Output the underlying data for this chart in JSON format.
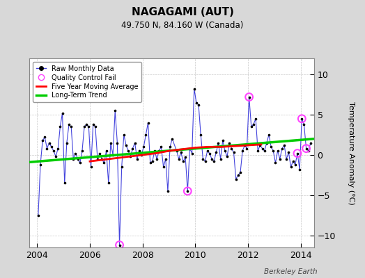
{
  "title": "NAGAGAMI (AUT)",
  "subtitle": "49.750 N, 84.160 W (Canada)",
  "ylabel": "Temperature Anomaly (°C)",
  "credit": "Berkeley Earth",
  "xlim": [
    2003.7,
    2014.5
  ],
  "ylim": [
    -11.5,
    12
  ],
  "yticks": [
    -10,
    -5,
    0,
    5,
    10
  ],
  "bg_color": "#d8d8d8",
  "plot_bg": "#ffffff",
  "line_color": "#4444dd",
  "dot_color": "#000000",
  "ma_color": "#ff0000",
  "trend_color": "#00cc00",
  "qc_color": "#ff44ff",
  "raw_monthly": [
    2004.042,
    -7.5,
    2004.125,
    -1.2,
    2004.208,
    1.8,
    2004.292,
    2.2,
    2004.375,
    0.8,
    2004.458,
    1.5,
    2004.542,
    1.0,
    2004.625,
    0.5,
    2004.708,
    -0.2,
    2004.792,
    0.8,
    2004.875,
    3.5,
    2004.958,
    5.2,
    2005.042,
    -3.5,
    2005.125,
    1.5,
    2005.208,
    3.8,
    2005.292,
    3.5,
    2005.375,
    -0.5,
    2005.458,
    0.2,
    2005.542,
    -0.5,
    2005.625,
    -1.0,
    2005.708,
    0.5,
    2005.792,
    3.5,
    2005.875,
    3.8,
    2005.958,
    3.5,
    2006.042,
    -1.5,
    2006.125,
    3.8,
    2006.208,
    3.5,
    2006.292,
    -0.5,
    2006.375,
    0.2,
    2006.458,
    -0.5,
    2006.542,
    -1.0,
    2006.625,
    0.5,
    2006.708,
    -3.5,
    2006.792,
    1.5,
    2006.875,
    0.0,
    2006.958,
    5.5,
    2007.042,
    1.5,
    2007.125,
    -11.2,
    2007.208,
    -1.5,
    2007.292,
    2.5,
    2007.375,
    1.2,
    2007.458,
    0.5,
    2007.542,
    -0.2,
    2007.625,
    0.8,
    2007.708,
    1.5,
    2007.792,
    -0.5,
    2007.875,
    0.5,
    2007.958,
    0.0,
    2008.042,
    1.0,
    2008.125,
    2.5,
    2008.208,
    4.0,
    2008.292,
    -1.0,
    2008.375,
    -0.8,
    2008.458,
    0.5,
    2008.542,
    -0.5,
    2008.625,
    0.5,
    2008.708,
    1.0,
    2008.792,
    -1.5,
    2008.875,
    -0.5,
    2008.958,
    -4.5,
    2009.042,
    1.0,
    2009.125,
    2.0,
    2009.292,
    0.5,
    2009.375,
    -0.5,
    2009.458,
    0.3,
    2009.542,
    -0.8,
    2009.625,
    -0.3,
    2009.708,
    -4.5,
    2009.792,
    0.8,
    2009.875,
    0.2,
    2009.958,
    8.2,
    2010.042,
    6.5,
    2010.125,
    6.2,
    2010.208,
    2.5,
    2010.292,
    -0.5,
    2010.375,
    -0.8,
    2010.458,
    0.5,
    2010.542,
    0.2,
    2010.625,
    -0.5,
    2010.708,
    -0.8,
    2010.792,
    0.3,
    2010.875,
    1.5,
    2010.958,
    -0.5,
    2011.042,
    1.8,
    2011.125,
    0.5,
    2011.208,
    -0.2,
    2011.292,
    1.5,
    2011.375,
    0.8,
    2011.458,
    0.3,
    2011.542,
    -3.0,
    2011.625,
    -2.5,
    2011.708,
    -2.2,
    2011.792,
    0.5,
    2011.875,
    1.2,
    2011.958,
    0.8,
    2012.042,
    7.2,
    2012.125,
    3.5,
    2012.208,
    3.8,
    2012.292,
    4.5,
    2012.375,
    0.5,
    2012.458,
    1.2,
    2012.542,
    0.8,
    2012.625,
    0.5,
    2012.708,
    1.5,
    2012.792,
    2.5,
    2012.875,
    1.0,
    2012.958,
    0.5,
    2013.042,
    -1.0,
    2013.125,
    0.5,
    2013.208,
    -0.5,
    2013.292,
    0.8,
    2013.375,
    1.2,
    2013.458,
    -0.5,
    2013.542,
    0.3,
    2013.625,
    -1.5,
    2013.708,
    -0.8,
    2013.792,
    -1.2,
    2013.875,
    0.2,
    2013.958,
    -1.8,
    2014.042,
    4.5,
    2014.125,
    3.8,
    2014.208,
    0.8,
    2014.292,
    0.5,
    2014.375,
    1.5
  ],
  "qc_fail_x": [
    2007.125,
    2009.708,
    2012.042,
    2013.875,
    2014.042,
    2014.208
  ],
  "qc_fail_y": [
    -11.2,
    -4.5,
    7.2,
    0.2,
    4.5,
    0.8
  ],
  "ma_x": [
    2006.0,
    2006.5,
    2007.0,
    2007.5,
    2008.0,
    2008.5,
    2009.0,
    2009.5,
    2010.0,
    2010.5,
    2011.0,
    2011.5,
    2012.0,
    2012.5
  ],
  "ma_y": [
    -0.8,
    -0.6,
    -0.4,
    -0.2,
    0.0,
    0.2,
    0.5,
    0.7,
    0.9,
    1.0,
    1.0,
    1.1,
    1.2,
    1.3
  ],
  "trend_x": [
    2003.7,
    2014.5
  ],
  "trend_y": [
    -0.9,
    2.0
  ]
}
